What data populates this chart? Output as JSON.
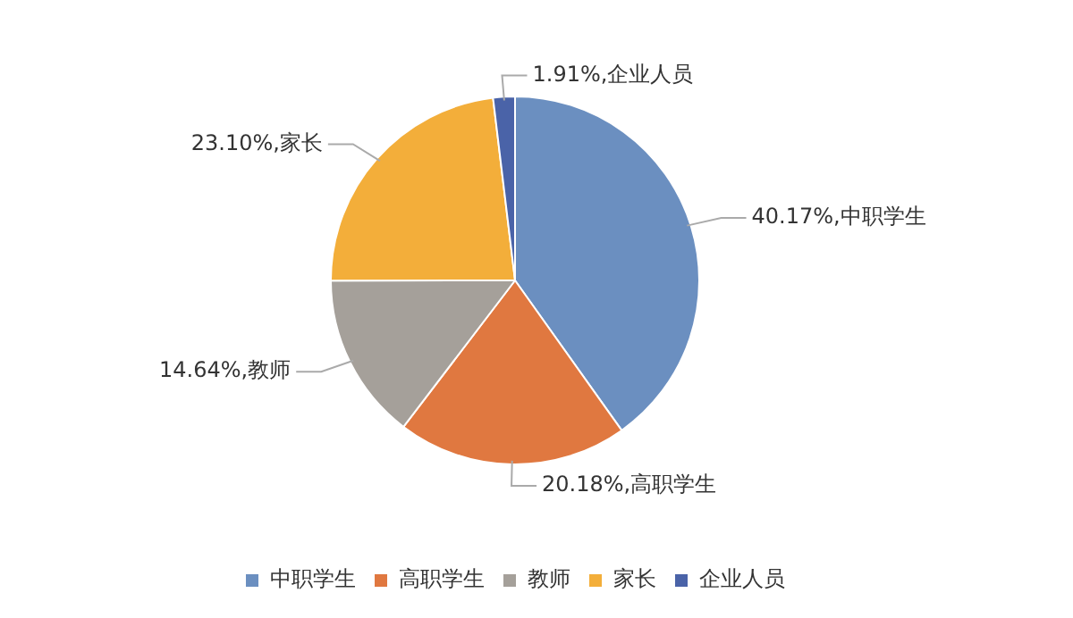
{
  "chart_data": {
    "type": "pie",
    "categories": [
      "中职学生",
      "高职学生",
      "教师",
      "家长",
      "企业人员"
    ],
    "values": [
      40.17,
      20.18,
      14.64,
      23.1,
      1.91
    ],
    "colors": [
      "#6b8fc0",
      "#e07840",
      "#a5a09a",
      "#f3ae3a",
      "#4a63a8"
    ],
    "value_labels": [
      "40.17%,中职学生",
      "20.18%,高职学生",
      "14.64%,教师",
      "23.10%,家长",
      "1.91%,企业人员"
    ],
    "legend": "bottom"
  }
}
